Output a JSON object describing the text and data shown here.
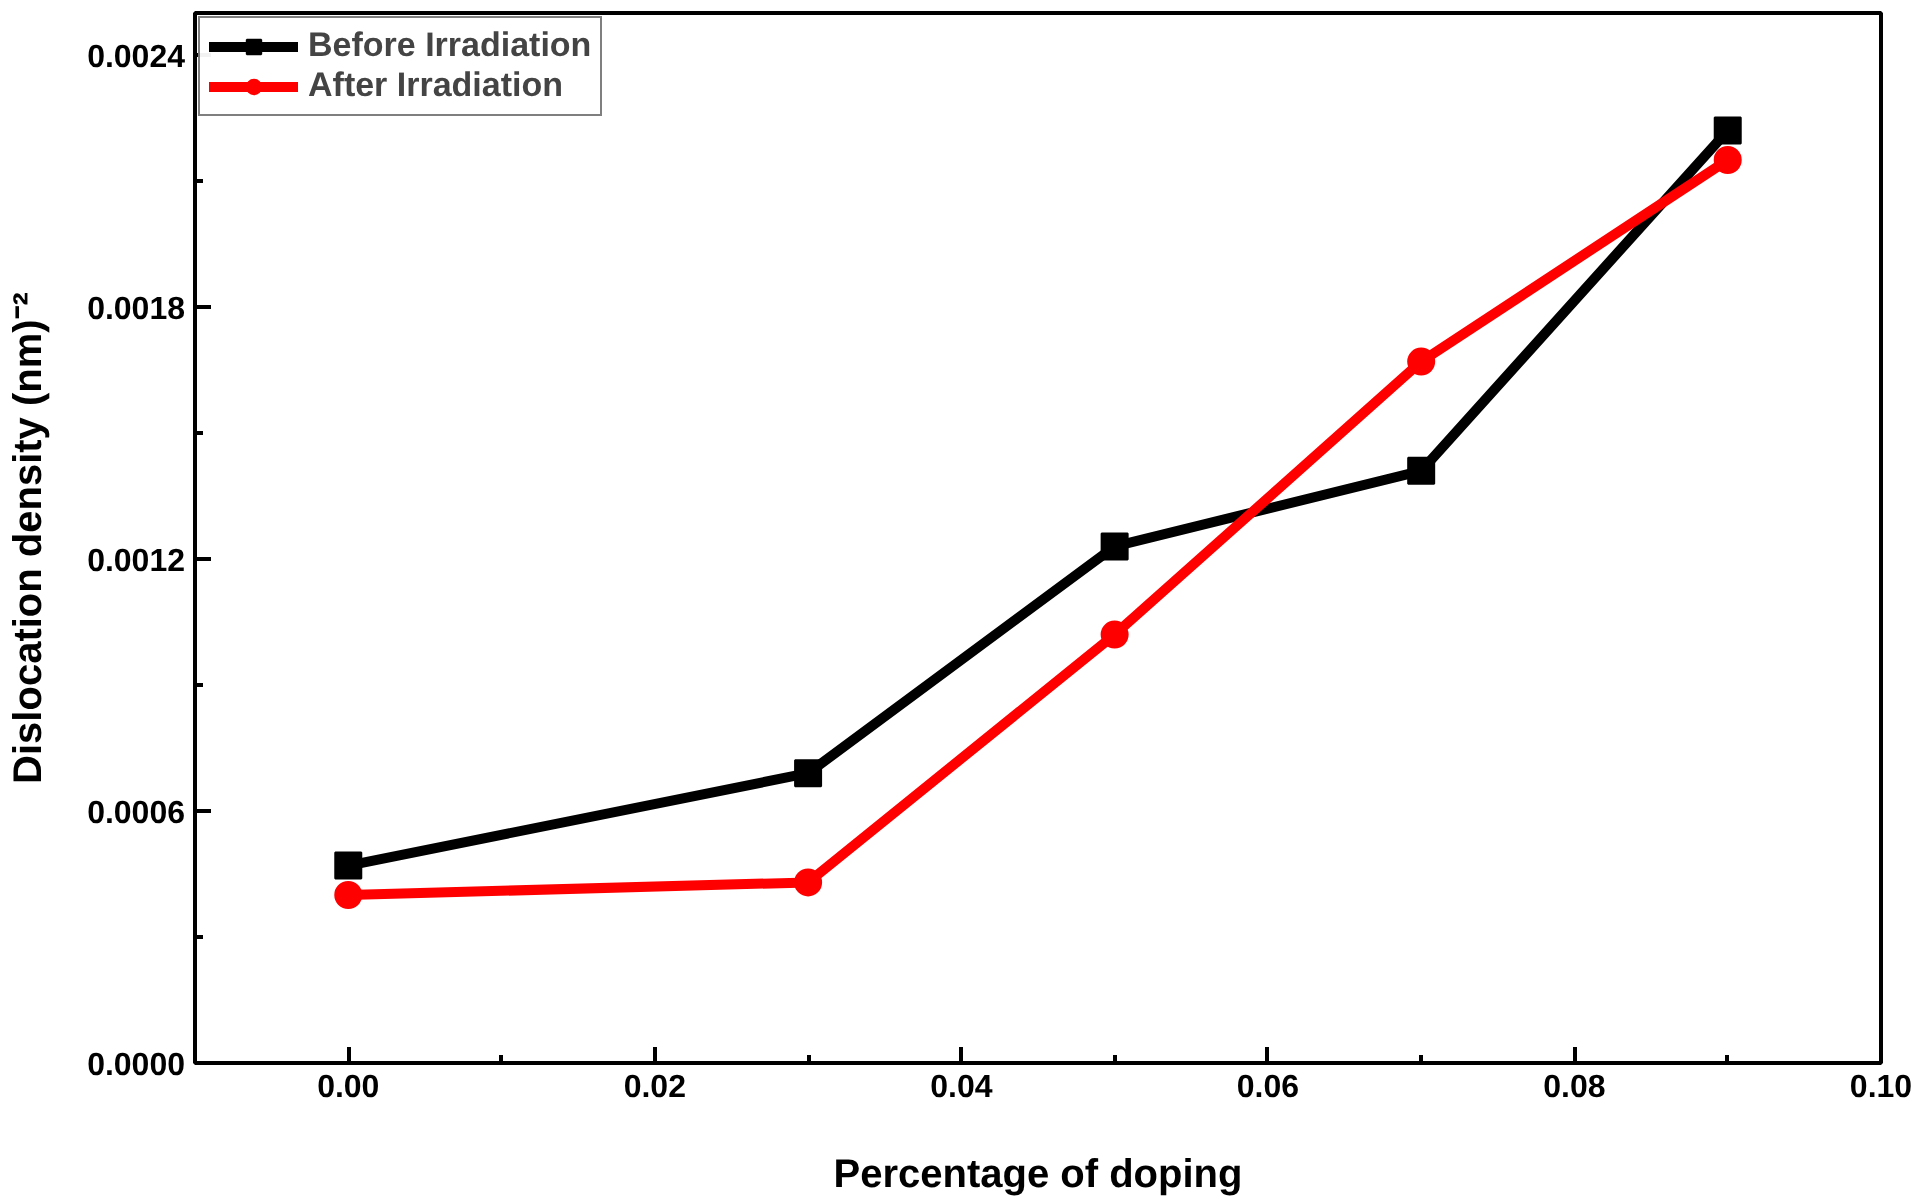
{
  "chart_data": {
    "type": "line",
    "xlabel": "Percentage of doping",
    "ylabel": "Dislocation density (nm)⁻²",
    "x": [
      0.0,
      0.03,
      0.05,
      0.07,
      0.09
    ],
    "series": [
      {
        "name": "Before Irradiation",
        "color": "#000000",
        "marker": "square",
        "values": [
          0.00047,
          0.00069,
          0.00123,
          0.00141,
          0.00222
        ]
      },
      {
        "name": "After Irradiation",
        "color": "#ff0000",
        "marker": "circle",
        "values": [
          0.0004,
          0.00043,
          0.00102,
          0.00167,
          0.00215
        ]
      }
    ],
    "xlim": [
      -0.01,
      0.1
    ],
    "ylim": [
      0,
      0.0025
    ],
    "xticks": [
      {
        "value": 0,
        "label": "0.00"
      },
      {
        "value": 0.02,
        "label": "0.02"
      },
      {
        "value": 0.04,
        "label": "0.04"
      },
      {
        "value": 0.06,
        "label": "0.06"
      },
      {
        "value": 0.08,
        "label": "0.08"
      },
      {
        "value": 0.1,
        "label": "0.10"
      }
    ],
    "yticks": [
      {
        "value": 0,
        "label": "0.0000"
      },
      {
        "value": 0.0006,
        "label": "0.0006"
      },
      {
        "value": 0.0012,
        "label": "0.0012"
      },
      {
        "value": 0.0018,
        "label": "0.0018"
      },
      {
        "value": 0.0024,
        "label": "0.0024"
      }
    ],
    "grid": false,
    "legend": "top left",
    "line_style": "solid"
  }
}
